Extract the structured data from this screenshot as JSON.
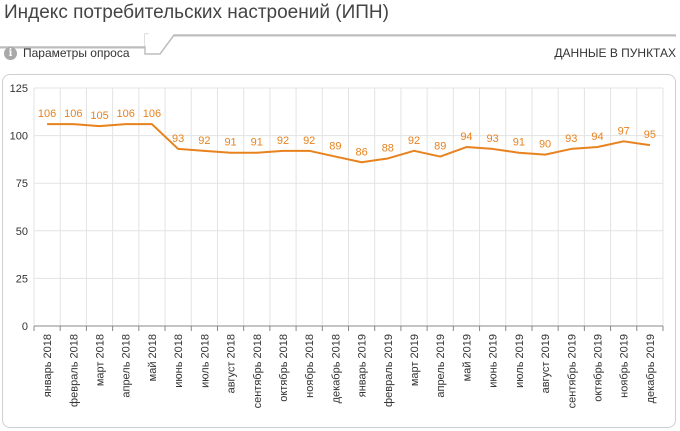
{
  "header": {
    "title": "Индекс потребительских настроений (ИПН)",
    "params_label": "Параметры опроса",
    "units_label": "ДАННЫЕ В ПУНКТАХ",
    "info_icon": "info-icon"
  },
  "colors": {
    "line": "#e8821e",
    "grid": "#e3e3e3",
    "axis": "#888888",
    "label": "#e8821e"
  },
  "chart_data": {
    "type": "line",
    "title": "Индекс потребительских настроений (ИПН)",
    "xlabel": "",
    "ylabel": "",
    "ylim": [
      0,
      125
    ],
    "yticks": [
      0,
      25,
      50,
      75,
      100,
      125
    ],
    "grid": true,
    "categories": [
      "январь 2018",
      "февраль 2018",
      "март 2018",
      "апрель 2018",
      "май 2018",
      "июнь 2018",
      "июль 2018",
      "август 2018",
      "сентябрь 2018",
      "октябрь 2018",
      "ноябрь 2018",
      "декабрь 2018",
      "январь 2019",
      "февраль 2019",
      "март 2019",
      "апрель 2019",
      "май 2019",
      "июнь 2019",
      "июль 2019",
      "август 2019",
      "сентябрь 2019",
      "октябрь 2019",
      "ноябрь 2019",
      "декабрь 2019"
    ],
    "series": [
      {
        "values": [
          106,
          106,
          105,
          106,
          106,
          93,
          92,
          91,
          91,
          92,
          92,
          89,
          86,
          88,
          92,
          89,
          94,
          93,
          91,
          90,
          93,
          94,
          97,
          95
        ]
      }
    ]
  }
}
